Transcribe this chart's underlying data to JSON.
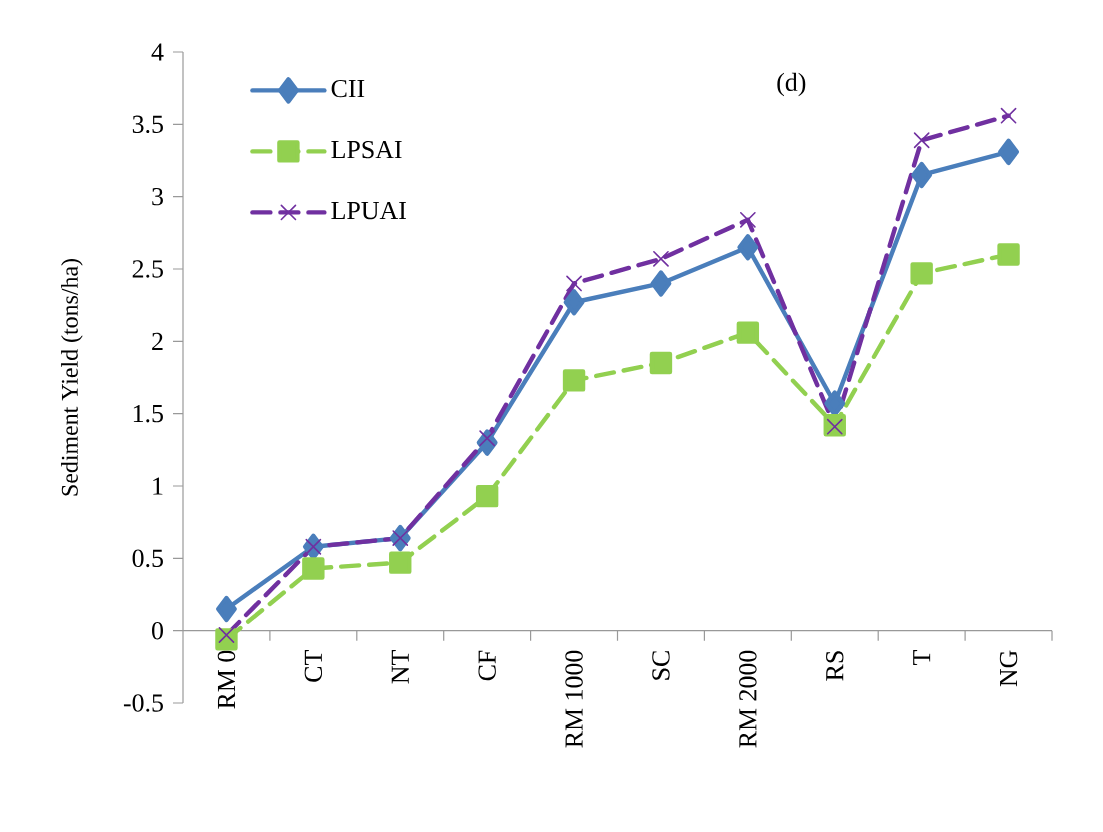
{
  "chart_data": {
    "type": "line",
    "ylabel": "Sediment Yield (tons/ha)",
    "annotations": [
      "(d)"
    ],
    "categories": [
      "RM 0",
      "CT",
      "NT",
      "CF",
      "RM 1000",
      "SC",
      "RM 2000",
      "RS",
      "T",
      "NG"
    ],
    "ylim": [
      -0.5,
      4
    ],
    "yticks": [
      -0.5,
      0,
      0.5,
      1,
      1.5,
      2,
      2.5,
      3,
      3.5,
      4
    ],
    "legend": "top left",
    "grid": false,
    "series": [
      {
        "name": "CII",
        "color": "#4a7ebb",
        "marker": "diamond",
        "line_style": "solid",
        "values": [
          0.15,
          0.58,
          0.64,
          1.3,
          2.27,
          2.4,
          2.65,
          1.57,
          3.15,
          3.31
        ]
      },
      {
        "name": "LPSAI",
        "color": "#92d050",
        "marker": "square",
        "line_style": "dashed",
        "values": [
          -0.06,
          0.43,
          0.47,
          0.93,
          1.73,
          1.85,
          2.06,
          1.42,
          2.47,
          2.6
        ]
      },
      {
        "name": "LPUAI",
        "color": "#7030a0",
        "marker": "cross",
        "line_style": "dashed",
        "values": [
          -0.03,
          0.58,
          0.64,
          1.33,
          2.4,
          2.57,
          2.84,
          1.41,
          3.39,
          3.56
        ]
      }
    ]
  }
}
